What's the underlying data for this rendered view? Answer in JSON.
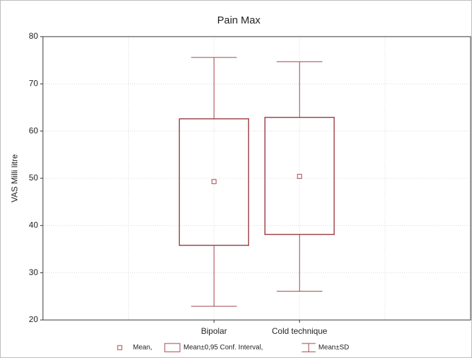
{
  "chart_data": {
    "type": "box",
    "title": "Pain Max",
    "ylabel": "VAS Milli litre",
    "categories": [
      "Bipolar",
      "Cold technique"
    ],
    "mean": [
      49.3,
      50.4
    ],
    "ci_lower": [
      35.8,
      38.1
    ],
    "ci_upper": [
      62.6,
      62.9
    ],
    "sd_lower": [
      22.9,
      26.1
    ],
    "sd_upper": [
      75.6,
      74.7
    ],
    "color": "#a0444a",
    "ylim": [
      20,
      80
    ],
    "yticks": [
      20,
      30,
      40,
      50,
      60,
      70,
      80
    ],
    "grid": true,
    "legend": [
      "Mean,",
      "Mean±0,95 Conf. Interval,",
      "Mean±SD"
    ]
  }
}
